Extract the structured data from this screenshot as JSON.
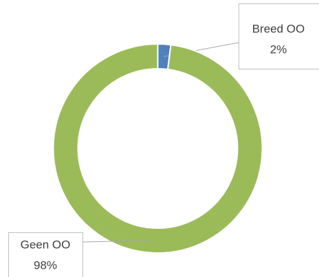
{
  "chart_data": {
    "type": "donut",
    "categories": [
      "Breed OO",
      "Geen OO"
    ],
    "values": [
      2,
      98
    ],
    "value_labels": [
      "2%",
      "98%"
    ],
    "colors": [
      "#4f81bd",
      "#9bbb59"
    ]
  }
}
